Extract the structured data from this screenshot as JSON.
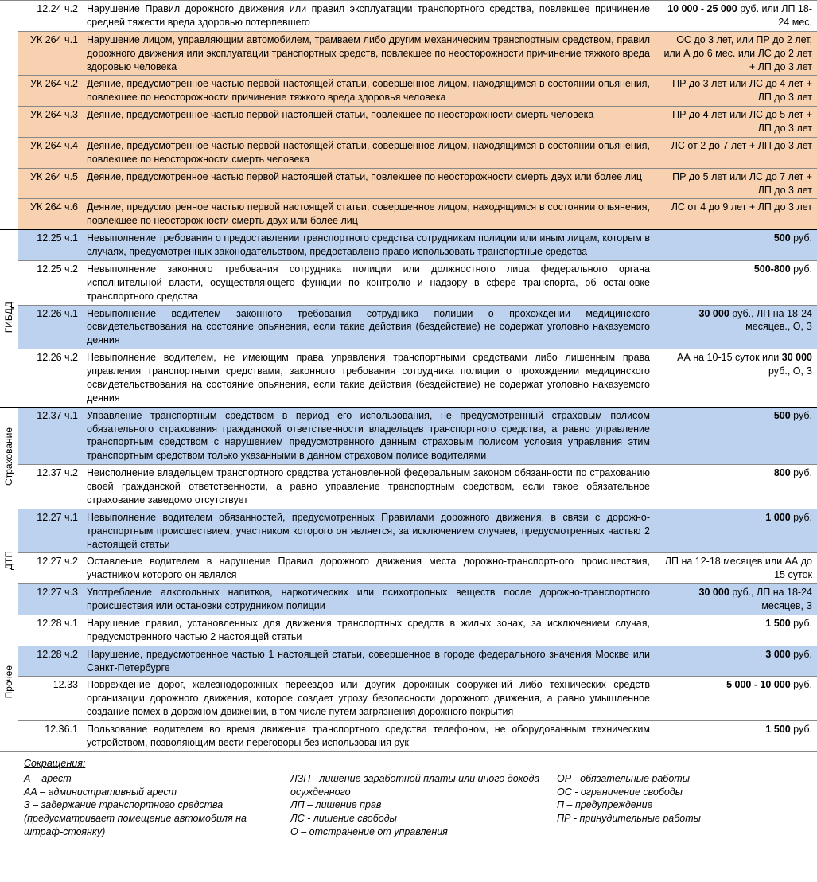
{
  "colors": {
    "orange": "#f8d2b0",
    "blue": "#bcd2ee",
    "white": "#ffffff",
    "border": "#888888",
    "text": "#000000"
  },
  "sections": [
    {
      "label": "",
      "rows": [
        {
          "bg": "white",
          "code": "12.24 ч.2",
          "desc": "Нарушение Правил дорожного движения или правил эксплуатации транспортного средства, повлекшее причинение средней тяжести вреда здоровью потерпевшего",
          "p1": "10 000 - 25 000",
          "p2": "руб. или ЛП 18-24 мес."
        },
        {
          "bg": "orange",
          "code": "УК 264 ч.1",
          "desc": "Нарушение лицом, управляющим автомобилем, трамваем либо другим механическим транспортным средством, правил дорожного движения или эксплуатации транспортных средств, повлекшее по неосторожности причинение тяжкого вреда здоровью человека",
          "p1": "",
          "p2": "ОС до 3 лет, или ПР до 2 лет, или А до 6 мес. или ЛС до 2 лет + ЛП до 3 лет"
        },
        {
          "bg": "orange",
          "code": "УК 264 ч.2",
          "desc": "Деяние, предусмотренное частью первой настоящей статьи, совершенное лицом, находящимся в состоянии опьянения, повлекшее по неосторожности причинение тяжкого вреда здоровья человека",
          "p1": "",
          "p2": "ПР до 3 лет или ЛС до 4 лет + ЛП до 3 лет"
        },
        {
          "bg": "orange",
          "code": "УК 264 ч.3",
          "desc": "Деяние, предусмотренное частью первой настоящей статьи, повлекшее по неосторожности смерть человека",
          "p1": "",
          "p2": "ПР до 4 лет или ЛС до 5 лет + ЛП до 3 лет"
        },
        {
          "bg": "orange",
          "code": "УК 264 ч.4",
          "desc": "Деяние, предусмотренное частью первой настоящей статьи, совершенное лицом, находящимся в состоянии опьянения, повлекшее по неосторожности смерть человека",
          "p1": "",
          "p2": "ЛС от 2 до 7 лет + ЛП до 3 лет"
        },
        {
          "bg": "orange",
          "code": "УК 264 ч.5",
          "desc": "Деяние, предусмотренное частью первой настоящей статьи, повлекшее по неосторожности смерть двух или более лиц",
          "p1": "",
          "p2": "ПР до 5 лет или ЛС до 7 лет + ЛП до 3 лет"
        },
        {
          "bg": "orange",
          "code": "УК 264 ч.6",
          "desc": "Деяние, предусмотренное частью первой настоящей статьи, совершенное лицом, находящимся в состоянии опьянения, повлекшее по неосторожности смерть двух или более лиц",
          "p1": "",
          "p2": "ЛС от 4 до 9 лет + ЛП до 3 лет"
        }
      ]
    },
    {
      "label": "ГИБДД",
      "rows": [
        {
          "bg": "blue",
          "code": "12.25 ч.1",
          "desc": "Невыполнение требования о предоставлении транспортного средства сотрудникам полиции или иным лицам, которым в случаях, предусмотренных законодательством, предоставлено право использовать транспортные средства",
          "p1": "500",
          "p2": "руб."
        },
        {
          "bg": "white",
          "code": "12.25 ч.2",
          "desc": "Невыполнение законного требования сотрудника полиции или должностного лица федерального органа исполнительной власти, осуществляющего функции по контролю и надзору в сфере транспорта, об остановке транспортного средства",
          "p1": "500-800",
          "p2": "руб."
        },
        {
          "bg": "blue",
          "code": "12.26 ч.1",
          "desc": "Невыполнение водителем законного требования сотрудника полиции о прохождении медицинского освидетельствования на состояние опьянения, если такие действия (бездействие) не содержат уголовно наказуемого деяния",
          "p1": "30 000",
          "p2": "руб., ЛП на 18-24 месяцев., О, З"
        },
        {
          "bg": "white",
          "code": "12.26 ч.2",
          "desc": "Невыполнение водителем, не имеющим права управления транспортными средствами либо лишенным права управления транспортными средствами, законного требования сотрудника полиции о прохождении медицинского освидетельствования на состояние опьянения, если такие действия (бездействие) не содержат уголовно наказуемого деяния",
          "p1": "",
          "p2": "АА на 10-15 суток или 30 000 руб., О, З"
        }
      ]
    },
    {
      "label": "Страхование",
      "rows": [
        {
          "bg": "blue",
          "code": "12.37 ч.1",
          "desc": "Управление транспортным средством в период его использования, не предусмотренный страховым полисом обязательного страхования гражданской ответственности владельцев транспортного средства, а равно управление транспортным средством с нарушением предусмотренного данным страховым полисом условия управления этим транспортным средством только указанными в данном страховом полисе водителями",
          "p1": "500",
          "p2": "руб."
        },
        {
          "bg": "white",
          "code": "12.37 ч.2",
          "desc": "Неисполнение владельцем транспортного средства установленной федеральным законом обязанности по страхованию своей гражданской ответственности, а равно управление транспортным средством, если такое обязательное страхование заведомо отсутствует",
          "p1": "800",
          "p2": "руб."
        }
      ]
    },
    {
      "label": "ДТП",
      "rows": [
        {
          "bg": "blue",
          "code": "12.27 ч.1",
          "desc": "Невыполнение водителем обязанностей, предусмотренных Правилами дорожного движения, в связи с дорожно-транспортным происшествием, участником которого он является, за исключением случаев, предусмотренных частью 2 настоящей статьи",
          "p1": "1 000",
          "p2": "руб."
        },
        {
          "bg": "white",
          "code": "12.27 ч.2",
          "desc": "Оставление водителем в нарушение Правил дорожного движения места дорожно-транспортного происшествия, участником которого он являлся",
          "p1": "",
          "p2": "ЛП на 12-18 месяцев или АА до 15 суток"
        },
        {
          "bg": "blue",
          "code": "12.27 ч.3",
          "desc": "Употребление алкогольных напитков, наркотических или психотропных веществ после дорожно-транспортного происшествия или остановки сотрудником полиции",
          "p1": "30 000",
          "p2": "руб., ЛП на 18-24 месяцев, З"
        }
      ]
    },
    {
      "label": "Прочее",
      "rows": [
        {
          "bg": "white",
          "code": "12.28 ч.1",
          "desc": "Нарушение правил, установленных для движения транспортных средств в жилых зонах, за исключением случая, предусмотренного частью 2 настоящей статьи",
          "p1": "1 500",
          "p2": "руб."
        },
        {
          "bg": "blue",
          "code": "12.28 ч.2",
          "desc": "Нарушение, предусмотренное частью 1 настоящей статьи, совершенное в городе федерального значения Москве или Санкт-Петербурге",
          "p1": "3 000",
          "p2": "руб."
        },
        {
          "bg": "white",
          "code": "12.33",
          "desc": "Повреждение дорог, железнодорожных переездов или других дорожных сооружений либо технических средств организации дорожного движения, которое создает угрозу безопасности дорожного движения, а равно умышленное создание помех в дорожном движении, в том числе путем загрязнения дорожного покрытия",
          "p1": "5 000 - 10 000",
          "p2": "руб."
        },
        {
          "bg": "white",
          "code": "12.36.1",
          "desc": "Пользование водителем во время движения транспортного средства телефоном, не оборудованным техническим устройством, позволяющим вести переговоры без использования рук",
          "p1": "1 500",
          "p2": "руб."
        }
      ]
    }
  ],
  "abbrevTitle": "Сокращения:",
  "abbrevCols": [
    [
      "А – арест",
      "АА – административный арест",
      "З – задержание транспортного средства (предусматривает помещение автомобиля на штраф-стоянку)"
    ],
    [
      "ЛЗП - лишение заработной платы или иного дохода осужденного",
      "ЛП – лишение прав",
      "ЛС - лишение свободы",
      "О – отстранение от управления"
    ],
    [
      "ОР - обязательные работы",
      "ОС - ограничение свободы",
      "П – предупреждение",
      "ПР - принудительные работы"
    ]
  ]
}
